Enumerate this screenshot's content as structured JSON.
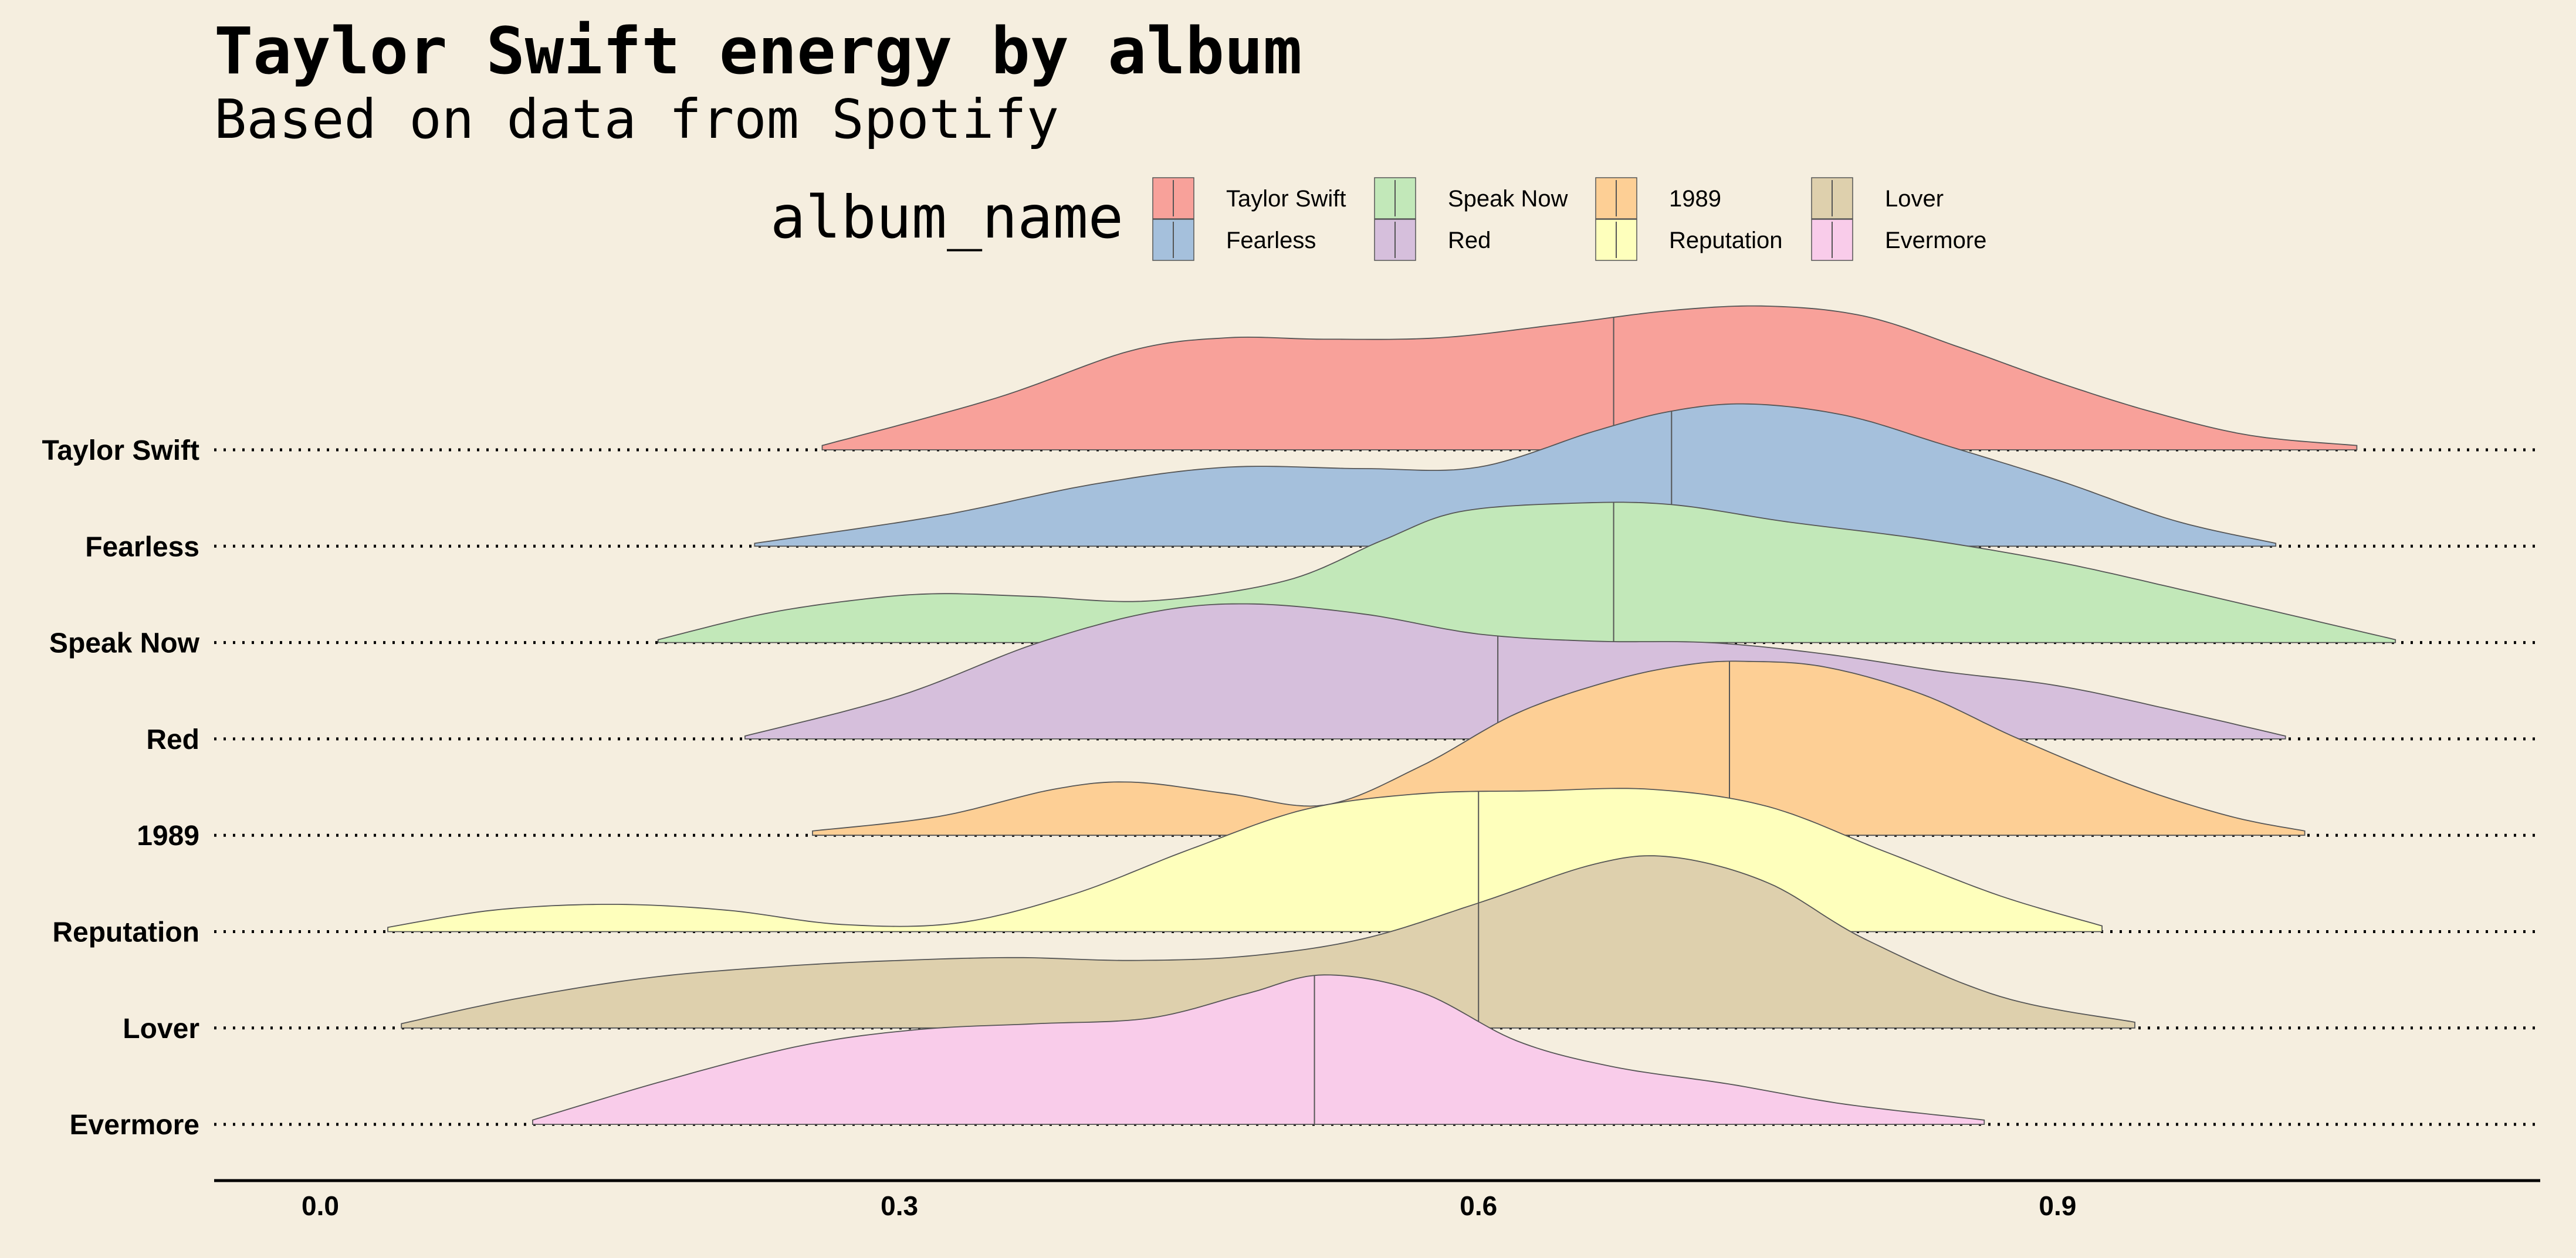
{
  "chart_data": {
    "type": "ridgeline",
    "title": "Taylor Swift energy by album",
    "subtitle": "Based on data from Spotify",
    "legend_title": "album_name",
    "legend_position": "top",
    "xlim": [
      -0.055,
      1.15
    ],
    "xticks": [
      {
        "value": 0.0,
        "label": "0.0"
      },
      {
        "value": 0.3,
        "label": "0.3"
      },
      {
        "value": 0.6,
        "label": "0.6"
      },
      {
        "value": 0.9,
        "label": "0.9"
      }
    ],
    "series": [
      {
        "name": "Taylor Swift",
        "color": "#f8a19a",
        "median": 0.67,
        "x": [
          0.26,
          0.35,
          0.42,
          0.47,
          0.52,
          0.58,
          0.64,
          0.7,
          0.75,
          0.8,
          0.85,
          0.9,
          0.95,
          1.0,
          1.055
        ],
        "y": [
          0.03,
          0.36,
          0.69,
          0.78,
          0.77,
          0.78,
          0.87,
          0.97,
          1.0,
          0.93,
          0.71,
          0.47,
          0.26,
          0.1,
          0.03
        ]
      },
      {
        "name": "Fearless",
        "color": "#a5c0dc",
        "median": 0.7,
        "x": [
          0.225,
          0.32,
          0.4,
          0.47,
          0.54,
          0.6,
          0.66,
          0.7,
          0.74,
          0.79,
          0.84,
          0.9,
          0.96,
          1.013
        ],
        "y": [
          0.02,
          0.21,
          0.43,
          0.55,
          0.54,
          0.55,
          0.8,
          0.94,
          0.99,
          0.91,
          0.71,
          0.46,
          0.18,
          0.02
        ]
      },
      {
        "name": "Speak Now",
        "color": "#c2e8b9",
        "median": 0.67,
        "x": [
          0.175,
          0.23,
          0.28,
          0.32,
          0.37,
          0.43,
          0.5,
          0.55,
          0.59,
          0.65,
          0.7,
          0.76,
          0.83,
          0.9,
          0.97,
          1.075
        ],
        "y": [
          0.02,
          0.2,
          0.3,
          0.34,
          0.32,
          0.29,
          0.43,
          0.71,
          0.91,
          0.97,
          0.96,
          0.84,
          0.72,
          0.56,
          0.35,
          0.02
        ]
      },
      {
        "name": "Red",
        "color": "#d6bfdc",
        "median": 0.61,
        "x": [
          0.22,
          0.3,
          0.37,
          0.43,
          0.48,
          0.54,
          0.6,
          0.66,
          0.72,
          0.78,
          0.84,
          0.9,
          0.96,
          1.018
        ],
        "y": [
          0.02,
          0.3,
          0.66,
          0.88,
          0.94,
          0.87,
          0.73,
          0.68,
          0.67,
          0.59,
          0.47,
          0.37,
          0.2,
          0.02
        ]
      },
      {
        "name": "1989",
        "color": "#fdcf95",
        "median": 0.73,
        "x": [
          0.255,
          0.32,
          0.38,
          0.42,
          0.47,
          0.52,
          0.57,
          0.62,
          0.67,
          0.71,
          0.74,
          0.78,
          0.83,
          0.88,
          0.94,
          0.99,
          1.028
        ],
        "y": [
          0.03,
          0.13,
          0.32,
          0.37,
          0.29,
          0.21,
          0.48,
          0.85,
          1.08,
          1.19,
          1.21,
          1.17,
          0.98,
          0.67,
          0.34,
          0.13,
          0.03
        ]
      },
      {
        "name": "Reputation",
        "color": "#feffbc",
        "median": 0.6,
        "x": [
          0.035,
          0.09,
          0.15,
          0.21,
          0.27,
          0.33,
          0.39,
          0.45,
          0.51,
          0.57,
          0.63,
          0.69,
          0.75,
          0.81,
          0.87,
          0.923
        ],
        "y": [
          0.03,
          0.15,
          0.19,
          0.15,
          0.05,
          0.06,
          0.26,
          0.57,
          0.85,
          0.96,
          0.98,
          0.99,
          0.87,
          0.56,
          0.25,
          0.04
        ]
      },
      {
        "name": "Lover",
        "color": "#ded0ad",
        "median": 0.6,
        "x": [
          0.042,
          0.1,
          0.17,
          0.24,
          0.3,
          0.36,
          0.42,
          0.48,
          0.54,
          0.6,
          0.66,
          0.7,
          0.75,
          0.8,
          0.87,
          0.94
        ],
        "y": [
          0.03,
          0.2,
          0.35,
          0.43,
          0.47,
          0.49,
          0.47,
          0.5,
          0.62,
          0.87,
          1.14,
          1.19,
          1.01,
          0.62,
          0.22,
          0.04
        ]
      },
      {
        "name": "Evermore",
        "color": "#f9ccea",
        "median": 0.515,
        "x": [
          0.11,
          0.18,
          0.25,
          0.31,
          0.37,
          0.43,
          0.48,
          0.52,
          0.57,
          0.62,
          0.67,
          0.73,
          0.79,
          0.862
        ],
        "y": [
          0.03,
          0.31,
          0.55,
          0.66,
          0.7,
          0.74,
          0.91,
          1.04,
          0.92,
          0.58,
          0.4,
          0.28,
          0.14,
          0.03
        ]
      }
    ]
  }
}
